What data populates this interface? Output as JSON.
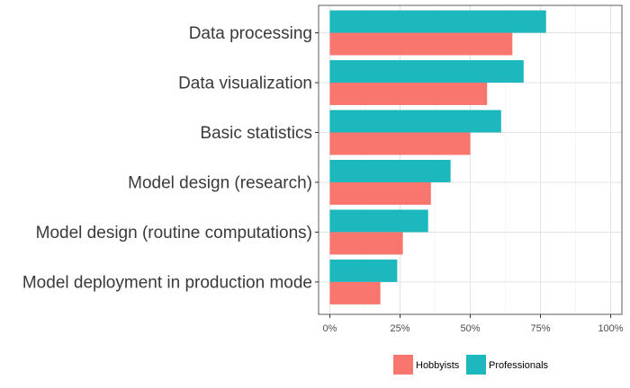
{
  "chart_data": {
    "type": "bar",
    "orientation": "horizontal",
    "categories": [
      "Data processing",
      "Data visualization",
      "Basic statistics",
      "Model design (research)",
      "Model design (routine computations)",
      "Model deployment in production mode"
    ],
    "series": [
      {
        "name": "Hobbyists",
        "values": [
          65,
          56,
          50,
          36,
          26,
          18
        ]
      },
      {
        "name": "Professionals",
        "values": [
          77,
          69,
          61,
          43,
          35,
          24
        ]
      }
    ],
    "xlim": [
      -4,
      104
    ],
    "x_ticks": [
      0,
      25,
      50,
      75,
      100
    ],
    "x_tick_labels": [
      "0%",
      "25%",
      "50%",
      "75%",
      "100%"
    ],
    "title": "",
    "xlabel": "",
    "ylabel": "",
    "grid": true,
    "legend_position": "bottom",
    "colors": {
      "Hobbyists": "#F8766D",
      "Professionals": "#1CB8BD"
    }
  }
}
